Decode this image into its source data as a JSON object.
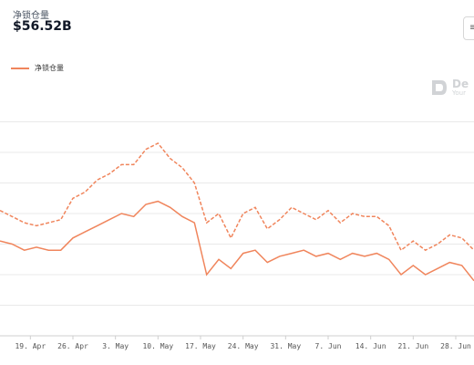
{
  "header": {
    "label": "净锁仓量",
    "value": "$56.52B"
  },
  "top_button": {
    "glyph": "≡"
  },
  "watermark": {
    "text": "De",
    "sub": "Your"
  },
  "colors": {
    "series": "#f0855c",
    "grid": "#e9e9e9"
  },
  "chart_data": {
    "type": "line",
    "x": [
      "04-14",
      "04-16",
      "04-18",
      "04-20",
      "04-22",
      "04-24",
      "04-26",
      "04-28",
      "04-30",
      "05-02",
      "05-04",
      "05-06",
      "05-08",
      "05-10",
      "05-12",
      "05-14",
      "05-16",
      "05-18",
      "05-20",
      "05-22",
      "05-24",
      "05-26",
      "05-28",
      "05-30",
      "06-01",
      "06-03",
      "06-05",
      "06-07",
      "06-09",
      "06-11",
      "06-13",
      "06-15",
      "06-17",
      "06-19",
      "06-21",
      "06-23",
      "06-25",
      "06-27",
      "06-29",
      "07-01"
    ],
    "x_tick_labels": [
      "19. Apr",
      "26. Apr",
      "3. May",
      "10. May",
      "17. May",
      "24. May",
      "31. May",
      "7. Jun",
      "14. Jun",
      "21. Jun",
      "28. Jun"
    ],
    "series": [
      {
        "name": "净锁仓量",
        "style": "solid",
        "values": [
          61,
          60,
          58,
          59,
          58,
          58,
          62,
          64,
          66,
          68,
          70,
          69,
          73,
          74,
          72,
          69,
          67,
          50,
          55,
          52,
          57,
          58,
          54,
          56,
          57,
          58,
          56,
          57,
          55,
          57,
          56,
          57,
          55,
          50,
          53,
          50,
          52,
          54,
          53,
          48
        ]
      },
      {
        "name": "",
        "style": "dashed",
        "values": [
          71,
          69,
          67,
          66,
          67,
          68,
          75,
          77,
          81,
          83,
          86,
          86,
          91,
          93,
          88,
          85,
          80,
          67,
          70,
          62,
          70,
          72,
          65,
          68,
          72,
          70,
          68,
          71,
          67,
          70,
          69,
          69,
          66,
          58,
          61,
          58,
          60,
          63,
          62,
          58
        ]
      }
    ],
    "ylim": [
      30,
      110
    ],
    "grid": true,
    "legend": "top-left"
  }
}
